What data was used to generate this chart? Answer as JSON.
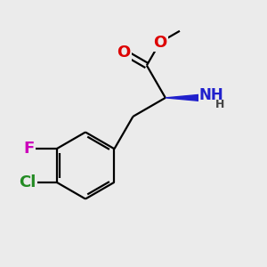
{
  "background_color": "#ebebeb",
  "bond_color": "#000000",
  "atom_colors": {
    "O": "#dd0000",
    "N": "#2020cc",
    "F": "#cc00bb",
    "Cl": "#228B22",
    "C": "#000000",
    "H": "#444444"
  },
  "bond_width": 1.6,
  "font_size_atom": 13
}
